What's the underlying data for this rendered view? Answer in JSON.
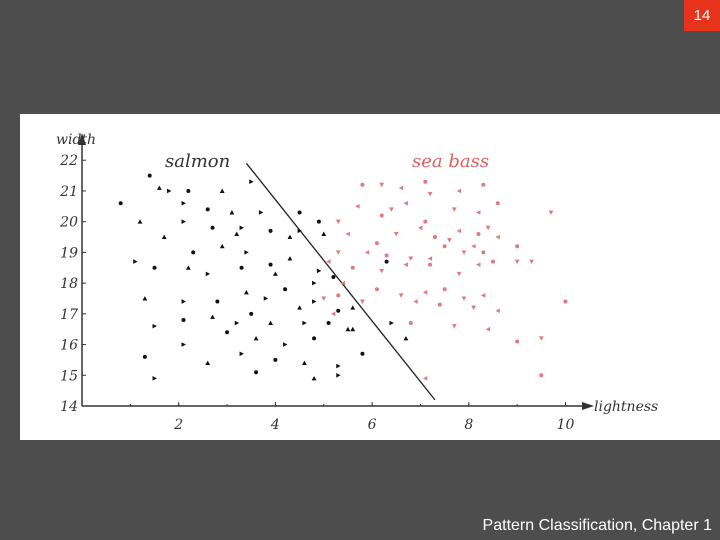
{
  "slide": {
    "number": "14",
    "footer": "Pattern Classification, Chapter 1"
  },
  "colors": {
    "background": "#4d4d4d",
    "badge": "#e8331c",
    "salmon_points": "#111111",
    "sea_bass_points": "#e07a80",
    "sea_bass_label": "#e06060"
  },
  "chart_data": {
    "type": "scatter",
    "xlabel": "lightness",
    "ylabel": "width",
    "xlim": [
      0,
      10.3
    ],
    "ylim": [
      14,
      22.3
    ],
    "x_ticks": [
      "2",
      "4",
      "6",
      "8",
      "10"
    ],
    "y_ticks": [
      "14",
      "15",
      "16",
      "17",
      "18",
      "19",
      "20",
      "21",
      "22"
    ],
    "grid": false,
    "decision_boundary": [
      [
        3.4,
        21.9
      ],
      [
        7.3,
        14.2
      ]
    ],
    "series": [
      {
        "name": "salmon",
        "color": "#111111",
        "points": [
          [
            1.4,
            21.5
          ],
          [
            1.6,
            21.1
          ],
          [
            1.8,
            21.0
          ],
          [
            2.2,
            21.0
          ],
          [
            2.9,
            21.0
          ],
          [
            3.5,
            21.3
          ],
          [
            0.8,
            20.6
          ],
          [
            1.2,
            20.0
          ],
          [
            2.1,
            20.6
          ],
          [
            2.6,
            20.4
          ],
          [
            3.1,
            20.3
          ],
          [
            3.7,
            20.3
          ],
          [
            4.5,
            20.3
          ],
          [
            1.7,
            19.5
          ],
          [
            2.1,
            20.0
          ],
          [
            2.7,
            19.8
          ],
          [
            3.2,
            19.6
          ],
          [
            3.3,
            19.8
          ],
          [
            3.9,
            19.7
          ],
          [
            4.3,
            19.5
          ],
          [
            4.5,
            19.7
          ],
          [
            4.9,
            20.0
          ],
          [
            5.0,
            19.6
          ],
          [
            1.1,
            18.7
          ],
          [
            2.3,
            19.0
          ],
          [
            2.9,
            19.2
          ],
          [
            3.4,
            19.0
          ],
          [
            3.9,
            18.6
          ],
          [
            4.3,
            18.8
          ],
          [
            4.9,
            18.4
          ],
          [
            1.5,
            18.5
          ],
          [
            2.2,
            18.5
          ],
          [
            2.6,
            18.3
          ],
          [
            3.3,
            18.5
          ],
          [
            4.0,
            18.3
          ],
          [
            4.8,
            18.0
          ],
          [
            5.2,
            18.2
          ],
          [
            1.3,
            17.5
          ],
          [
            2.1,
            17.4
          ],
          [
            2.8,
            17.4
          ],
          [
            3.4,
            17.7
          ],
          [
            3.8,
            17.5
          ],
          [
            4.2,
            17.8
          ],
          [
            4.5,
            17.2
          ],
          [
            4.8,
            17.4
          ],
          [
            5.3,
            17.1
          ],
          [
            5.6,
            17.2
          ],
          [
            1.5,
            16.6
          ],
          [
            2.1,
            16.8
          ],
          [
            2.7,
            16.9
          ],
          [
            3.2,
            16.7
          ],
          [
            3.5,
            17.0
          ],
          [
            3.9,
            16.7
          ],
          [
            4.6,
            16.7
          ],
          [
            5.1,
            16.7
          ],
          [
            5.5,
            16.5
          ],
          [
            2.1,
            16.0
          ],
          [
            3.0,
            16.4
          ],
          [
            3.6,
            16.2
          ],
          [
            4.2,
            16.0
          ],
          [
            4.8,
            16.2
          ],
          [
            5.6,
            16.5
          ],
          [
            6.4,
            16.7
          ],
          [
            1.3,
            15.6
          ],
          [
            2.6,
            15.4
          ],
          [
            3.3,
            15.7
          ],
          [
            4.0,
            15.5
          ],
          [
            4.6,
            15.4
          ],
          [
            5.3,
            15.3
          ],
          [
            5.8,
            15.7
          ],
          [
            6.7,
            16.2
          ],
          [
            1.5,
            14.9
          ],
          [
            3.6,
            15.1
          ],
          [
            4.8,
            14.9
          ],
          [
            5.3,
            15.0
          ],
          [
            6.3,
            18.7
          ]
        ]
      },
      {
        "name": "sea bass",
        "color": "#e07a80",
        "points": [
          [
            5.8,
            21.2
          ],
          [
            6.2,
            21.2
          ],
          [
            6.6,
            21.1
          ],
          [
            7.1,
            21.3
          ],
          [
            7.2,
            20.9
          ],
          [
            7.8,
            21.0
          ],
          [
            8.3,
            21.2
          ],
          [
            5.3,
            20.0
          ],
          [
            5.7,
            20.5
          ],
          [
            6.2,
            20.2
          ],
          [
            6.4,
            20.4
          ],
          [
            6.7,
            20.6
          ],
          [
            7.1,
            20.0
          ],
          [
            7.7,
            20.4
          ],
          [
            8.2,
            20.3
          ],
          [
            8.6,
            20.6
          ],
          [
            9.7,
            20.3
          ],
          [
            5.5,
            19.6
          ],
          [
            6.1,
            19.3
          ],
          [
            6.5,
            19.6
          ],
          [
            7.0,
            19.8
          ],
          [
            7.3,
            19.5
          ],
          [
            7.6,
            19.4
          ],
          [
            7.8,
            19.7
          ],
          [
            8.2,
            19.6
          ],
          [
            8.4,
            19.8
          ],
          [
            8.6,
            19.5
          ],
          [
            9.0,
            19.2
          ],
          [
            5.3,
            19.0
          ],
          [
            5.9,
            19.0
          ],
          [
            6.3,
            18.9
          ],
          [
            6.8,
            18.8
          ],
          [
            7.2,
            18.8
          ],
          [
            7.5,
            19.2
          ],
          [
            7.9,
            19.0
          ],
          [
            8.1,
            19.2
          ],
          [
            8.3,
            19.0
          ],
          [
            9.0,
            18.7
          ],
          [
            5.1,
            18.7
          ],
          [
            5.6,
            18.5
          ],
          [
            6.2,
            18.4
          ],
          [
            6.7,
            18.6
          ],
          [
            7.2,
            18.6
          ],
          [
            7.8,
            18.3
          ],
          [
            8.2,
            18.6
          ],
          [
            8.5,
            18.7
          ],
          [
            9.3,
            18.7
          ],
          [
            5.4,
            18.0
          ],
          [
            6.1,
            17.8
          ],
          [
            6.6,
            17.6
          ],
          [
            7.1,
            17.7
          ],
          [
            7.5,
            17.8
          ],
          [
            7.9,
            17.5
          ],
          [
            8.3,
            17.6
          ],
          [
            5.3,
            17.6
          ],
          [
            5.8,
            17.4
          ],
          [
            6.9,
            17.4
          ],
          [
            7.4,
            17.3
          ],
          [
            8.1,
            17.2
          ],
          [
            8.6,
            17.1
          ],
          [
            10.0,
            17.4
          ],
          [
            5.0,
            17.5
          ],
          [
            5.2,
            17.0
          ],
          [
            6.8,
            16.7
          ],
          [
            7.7,
            16.6
          ],
          [
            8.4,
            16.5
          ],
          [
            9.0,
            16.1
          ],
          [
            9.5,
            16.2
          ],
          [
            7.1,
            14.9
          ],
          [
            9.5,
            15.0
          ]
        ]
      }
    ],
    "legend": [
      "salmon",
      "sea bass"
    ]
  }
}
